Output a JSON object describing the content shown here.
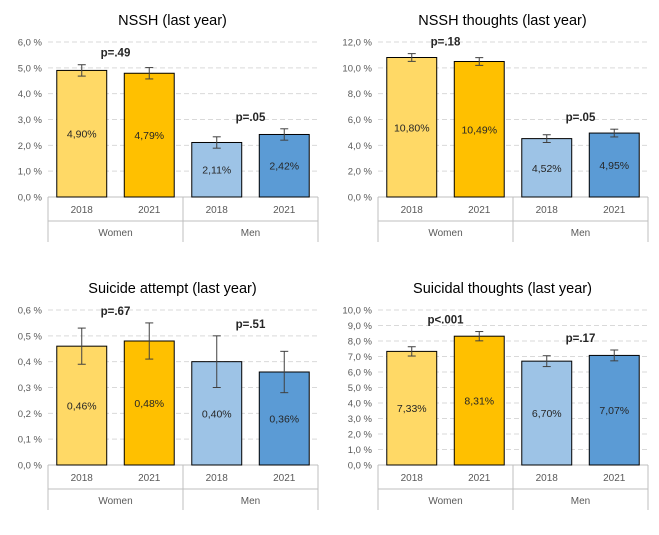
{
  "colors": {
    "women_2018": "#ffd966",
    "women_2021": "#ffc000",
    "men_2018": "#9dc3e6",
    "men_2021": "#5b9bd5",
    "grid": "#d9d9d9",
    "axis_text": "#595959"
  },
  "chart_data": [
    {
      "type": "bar",
      "title": "NSSH (last year)",
      "groups": [
        "Women",
        "Men"
      ],
      "categories": [
        "2018",
        "2021",
        "2018",
        "2021"
      ],
      "values": [
        4.9,
        4.79,
        2.11,
        2.42
      ],
      "error": [
        0.22,
        0.22,
        0.22,
        0.22
      ],
      "data_labels": [
        "4,90%",
        "4,79%",
        "2,11%",
        "2,42%"
      ],
      "yticks": [
        "0,0 %",
        "1,0 %",
        "2,0 %",
        "3,0 %",
        "4,0 %",
        "5,0 %",
        "6,0 %"
      ],
      "ylim": [
        0,
        6
      ],
      "pvalues": [
        "p=.49",
        "p=.05"
      ],
      "grid": true
    },
    {
      "type": "bar",
      "title": "NSSH thoughts (last year)",
      "groups": [
        "Women",
        "Men"
      ],
      "categories": [
        "2018",
        "2021",
        "2018",
        "2021"
      ],
      "values": [
        10.8,
        10.49,
        4.52,
        4.95
      ],
      "error": [
        0.3,
        0.3,
        0.3,
        0.3
      ],
      "data_labels": [
        "10,80%",
        "10,49%",
        "4,52%",
        "4,95%"
      ],
      "yticks": [
        "0,0 %",
        "2,0 %",
        "4,0 %",
        "6,0 %",
        "8,0 %",
        "10,0 %",
        "12,0 %"
      ],
      "ylim": [
        0,
        12
      ],
      "pvalues": [
        "p=.18",
        "p=.05"
      ],
      "grid": true
    },
    {
      "type": "bar",
      "title": "Suicide attempt (last year)",
      "groups": [
        "Women",
        "Men"
      ],
      "categories": [
        "2018",
        "2021",
        "2018",
        "2021"
      ],
      "values": [
        0.46,
        0.48,
        0.4,
        0.36
      ],
      "error": [
        0.07,
        0.07,
        0.1,
        0.08
      ],
      "data_labels": [
        "0,46%",
        "0,48%",
        "0,40%",
        "0,36%"
      ],
      "yticks": [
        "0,0 %",
        "0,1 %",
        "0,2 %",
        "0,3 %",
        "0,4 %",
        "0,5 %",
        "0,6 %"
      ],
      "ylim": [
        0,
        0.6
      ],
      "pvalues": [
        "p=.67",
        "p=.51"
      ],
      "grid": true
    },
    {
      "type": "bar",
      "title": "Suicidal thoughts (last year)",
      "groups": [
        "Women",
        "Men"
      ],
      "categories": [
        "2018",
        "2021",
        "2018",
        "2021"
      ],
      "values": [
        7.33,
        8.31,
        6.7,
        7.07
      ],
      "error": [
        0.3,
        0.3,
        0.35,
        0.35
      ],
      "data_labels": [
        "7,33%",
        "8,31%",
        "6,70%",
        "7,07%"
      ],
      "yticks": [
        "0,0 %",
        "1,0 %",
        "2,0 %",
        "3,0 %",
        "4,0 %",
        "5,0 %",
        "6,0 %",
        "7,0 %",
        "8,0 %",
        "9,0 %",
        "10,0 %"
      ],
      "ylim": [
        0,
        10
      ],
      "pvalues": [
        "p<.001",
        "p=.17"
      ],
      "grid": true
    }
  ]
}
